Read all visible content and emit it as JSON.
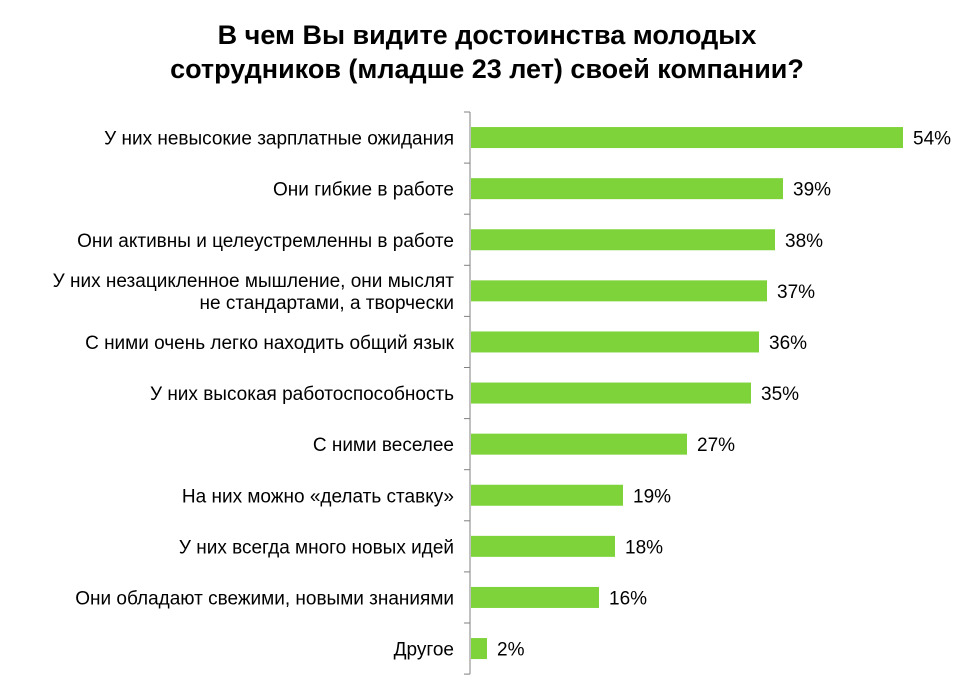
{
  "chart_data": {
    "type": "bar",
    "orientation": "horizontal",
    "title_lines": [
      "В чем Вы видите достоинства молодых",
      "сотрудников (младше 23 лет) своей компании?"
    ],
    "categories": [
      [
        "У них невысокие зарплатные ожидания"
      ],
      [
        "Они гибкие в работе"
      ],
      [
        "Они активны и целеустремленны в работе"
      ],
      [
        "У них незацикленное мышление, они мыслят",
        "не стандартами, а творчески"
      ],
      [
        "С ними очень легко находить общий язык"
      ],
      [
        "У них высокая работоспособность"
      ],
      [
        "С ними веселее"
      ],
      [
        "На них можно «делать ставку»"
      ],
      [
        "У них всегда много новых идей"
      ],
      [
        "Они обладают свежими, новыми знаниями"
      ],
      [
        "Другое"
      ]
    ],
    "values": [
      54,
      39,
      38,
      37,
      36,
      35,
      27,
      19,
      18,
      16,
      2
    ],
    "value_labels": [
      "54%",
      "39%",
      "38%",
      "37%",
      "36%",
      "35%",
      "27%",
      "19%",
      "18%",
      "16%",
      "2%"
    ],
    "xlim": [
      0,
      54
    ],
    "grid": false,
    "legend": "none",
    "bar_color": "#7ed33a",
    "axis_color": "#808080"
  }
}
